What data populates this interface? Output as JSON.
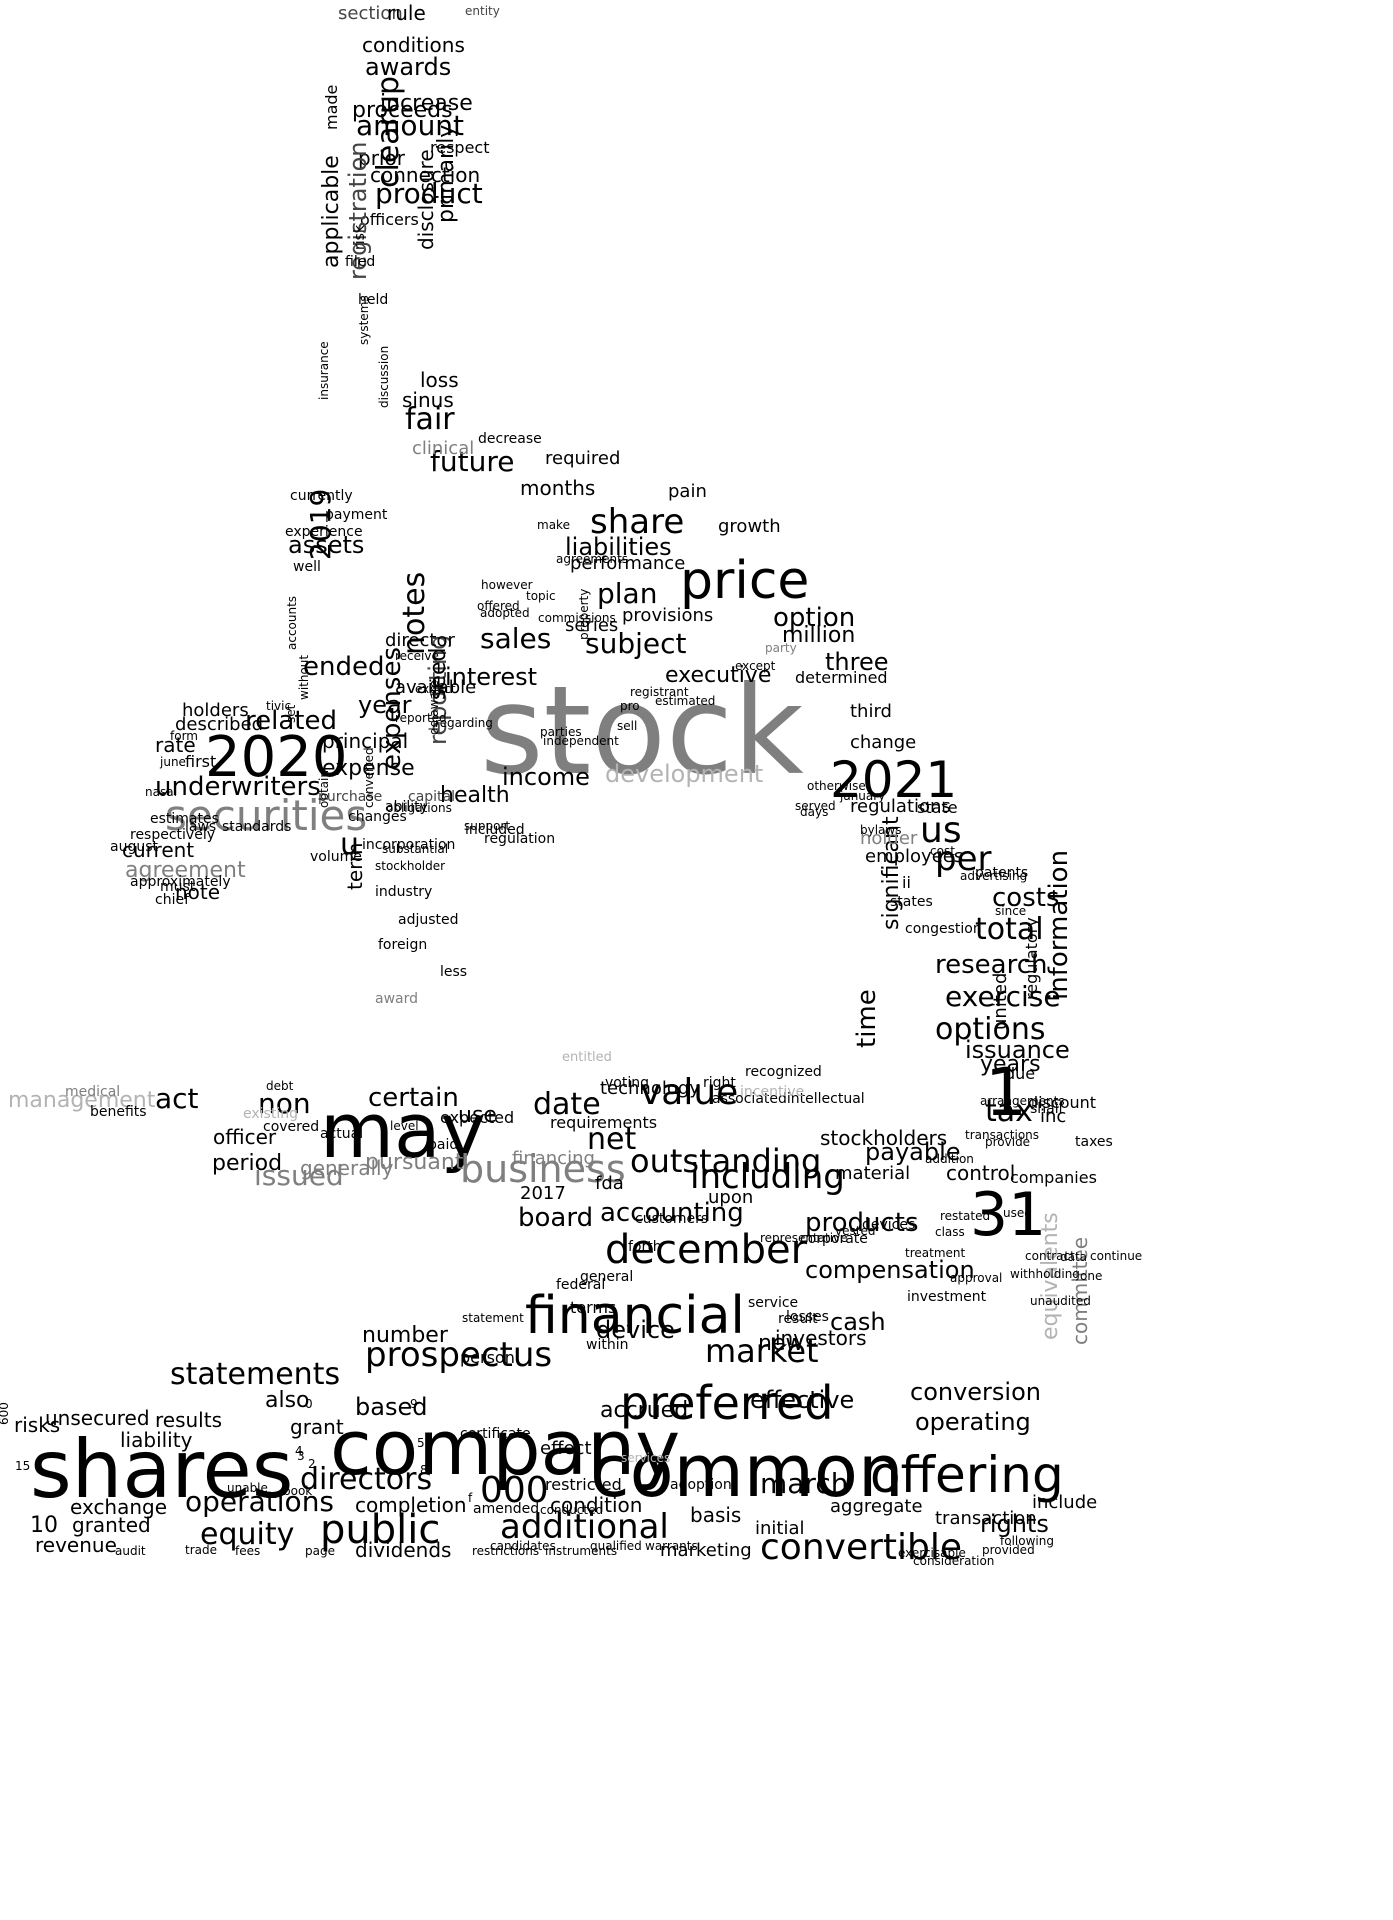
{
  "colors": {
    "background": "#ffffff",
    "dark": "#000000",
    "medium": "#444444",
    "gray": "#7f7f7f",
    "light": "#b3b3b3",
    "pale": "#d0d0d0"
  },
  "words": [
    {
      "t": "stock",
      "c": "gray"
    },
    {
      "t": "shares",
      "c": "dark"
    },
    {
      "t": "company",
      "c": "dark"
    },
    {
      "t": "common",
      "c": "dark"
    },
    {
      "t": "may",
      "c": "dark"
    },
    {
      "t": "offering",
      "c": "dark"
    },
    {
      "t": "financial",
      "c": "dark"
    },
    {
      "t": "2020",
      "c": "dark"
    },
    {
      "t": "2021",
      "c": "dark"
    },
    {
      "t": "price",
      "c": "dark"
    },
    {
      "t": "securities",
      "c": "gray"
    },
    {
      "t": "preferred",
      "c": "dark"
    },
    {
      "t": "december",
      "c": "dark"
    },
    {
      "t": "business",
      "c": "gray"
    },
    {
      "t": "convertible",
      "c": "dark"
    },
    {
      "t": "public",
      "c": "dark"
    },
    {
      "t": "31",
      "c": "dark"
    },
    {
      "t": "1",
      "c": "dark"
    },
    {
      "t": "share",
      "c": "dark"
    },
    {
      "t": "value",
      "c": "dark"
    },
    {
      "t": "outstanding",
      "c": "dark"
    },
    {
      "t": "market",
      "c": "dark"
    },
    {
      "t": "prospectus",
      "c": "dark"
    },
    {
      "t": "additional",
      "c": "dark"
    },
    {
      "t": "including",
      "c": "dark"
    },
    {
      "t": "000",
      "c": "dark"
    },
    {
      "t": "statements",
      "c": "dark"
    },
    {
      "t": "directors",
      "c": "dark"
    },
    {
      "t": "equity",
      "c": "dark"
    },
    {
      "t": "operations",
      "c": "dark"
    },
    {
      "t": "sales",
      "c": "dark"
    },
    {
      "t": "subject",
      "c": "dark"
    },
    {
      "t": "plan",
      "c": "dark"
    },
    {
      "t": "liabilities",
      "c": "dark"
    },
    {
      "t": "fair",
      "c": "dark"
    },
    {
      "t": "future",
      "c": "dark"
    },
    {
      "t": "amount",
      "c": "dark"
    },
    {
      "t": "product",
      "c": "dark"
    },
    {
      "t": "awards",
      "c": "dark"
    },
    {
      "t": "proceeds",
      "c": "dark"
    },
    {
      "t": "increase",
      "c": "dark"
    },
    {
      "t": "conditions",
      "c": "dark"
    },
    {
      "t": "prior",
      "c": "dark"
    },
    {
      "t": "connection",
      "c": "dark"
    },
    {
      "t": "respect",
      "c": "dark"
    },
    {
      "t": "officers",
      "c": "dark"
    },
    {
      "t": "section",
      "c": "medium"
    },
    {
      "t": "rule",
      "c": "dark"
    },
    {
      "t": "entity",
      "c": "medium"
    },
    {
      "t": "assets",
      "c": "dark"
    },
    {
      "t": "ended",
      "c": "dark"
    },
    {
      "t": "related",
      "c": "dark"
    },
    {
      "t": "year",
      "c": "dark"
    },
    {
      "t": "interest",
      "c": "dark"
    },
    {
      "t": "executive",
      "c": "dark"
    },
    {
      "t": "option",
      "c": "dark"
    },
    {
      "t": "million",
      "c": "dark"
    },
    {
      "t": "three",
      "c": "dark"
    },
    {
      "t": "income",
      "c": "dark"
    },
    {
      "t": "development",
      "c": "light"
    },
    {
      "t": "health",
      "c": "dark"
    },
    {
      "t": "expense",
      "c": "dark"
    },
    {
      "t": "principal",
      "c": "dark"
    },
    {
      "t": "rate",
      "c": "dark"
    },
    {
      "t": "holders",
      "c": "dark"
    },
    {
      "t": "described",
      "c": "dark"
    },
    {
      "t": "underwriters",
      "c": "dark"
    },
    {
      "t": "first",
      "c": "dark"
    },
    {
      "t": "agreement",
      "c": "gray"
    },
    {
      "t": "current",
      "c": "dark"
    },
    {
      "t": "note",
      "c": "dark"
    },
    {
      "t": "us",
      "c": "dark"
    },
    {
      "t": "per",
      "c": "dark"
    },
    {
      "t": "total",
      "c": "dark"
    },
    {
      "t": "costs",
      "c": "dark"
    },
    {
      "t": "research",
      "c": "dark"
    },
    {
      "t": "exercise",
      "c": "dark"
    },
    {
      "t": "options",
      "c": "dark"
    },
    {
      "t": "issuance",
      "c": "dark"
    },
    {
      "t": "years",
      "c": "dark"
    },
    {
      "t": "tax",
      "c": "dark"
    },
    {
      "t": "information",
      "c": "dark"
    },
    {
      "t": "time",
      "c": "dark"
    },
    {
      "t": "significant",
      "c": "dark"
    },
    {
      "t": "certain",
      "c": "dark"
    },
    {
      "t": "act",
      "c": "dark"
    },
    {
      "t": "non",
      "c": "dark"
    },
    {
      "t": "date",
      "c": "dark"
    },
    {
      "t": "net",
      "c": "dark"
    },
    {
      "t": "use",
      "c": "dark"
    },
    {
      "t": "issued",
      "c": "gray"
    },
    {
      "t": "management",
      "c": "light"
    },
    {
      "t": "period",
      "c": "dark"
    },
    {
      "t": "officer",
      "c": "dark"
    },
    {
      "t": "generally",
      "c": "gray"
    },
    {
      "t": "pursuant",
      "c": "gray"
    },
    {
      "t": "accounting",
      "c": "dark"
    },
    {
      "t": "board",
      "c": "dark"
    },
    {
      "t": "products",
      "c": "dark"
    },
    {
      "t": "compensation",
      "c": "dark"
    },
    {
      "t": "payable",
      "c": "dark"
    },
    {
      "t": "stockholders",
      "c": "dark"
    },
    {
      "t": "control",
      "c": "dark"
    },
    {
      "t": "cash",
      "c": "dark"
    },
    {
      "t": "device",
      "c": "dark"
    },
    {
      "t": "number",
      "c": "dark"
    },
    {
      "t": "new",
      "c": "dark"
    },
    {
      "t": "investors",
      "c": "dark"
    },
    {
      "t": "conversion",
      "c": "dark"
    },
    {
      "t": "operating",
      "c": "dark"
    },
    {
      "t": "based",
      "c": "dark"
    },
    {
      "t": "also",
      "c": "dark"
    },
    {
      "t": "grant",
      "c": "dark"
    },
    {
      "t": "results",
      "c": "dark"
    },
    {
      "t": "liability",
      "c": "dark"
    },
    {
      "t": "unsecured",
      "c": "dark"
    },
    {
      "t": "risks",
      "c": "dark"
    },
    {
      "t": "exchange",
      "c": "dark"
    },
    {
      "t": "10",
      "c": "dark"
    },
    {
      "t": "granted",
      "c": "dark"
    },
    {
      "t": "revenue",
      "c": "dark"
    },
    {
      "t": "accrued",
      "c": "dark"
    },
    {
      "t": "effective",
      "c": "dark"
    },
    {
      "t": "march",
      "c": "dark"
    },
    {
      "t": "dividends",
      "c": "dark"
    },
    {
      "t": "completion",
      "c": "dark"
    },
    {
      "t": "condition",
      "c": "dark"
    },
    {
      "t": "marketing",
      "c": "dark"
    },
    {
      "t": "rights",
      "c": "dark"
    },
    {
      "t": "include",
      "c": "dark"
    },
    {
      "t": "transaction",
      "c": "dark"
    },
    {
      "t": "initial",
      "c": "dark"
    },
    {
      "t": "basis",
      "c": "dark"
    },
    {
      "t": "aggregate",
      "c": "dark"
    },
    {
      "t": "clearup",
      "c": "dark"
    },
    {
      "t": "registration",
      "c": "medium"
    },
    {
      "t": "applicable",
      "c": "dark"
    },
    {
      "t": "notes",
      "c": "dark"
    },
    {
      "t": "2019",
      "c": "dark"
    },
    {
      "t": "expenses",
      "c": "dark"
    },
    {
      "t": "reporting",
      "c": "medium"
    },
    {
      "t": "term",
      "c": "dark"
    },
    {
      "t": "seed",
      "c": "dark"
    },
    {
      "t": "u",
      "c": "dark"
    },
    {
      "t": "sinus",
      "c": "dark"
    },
    {
      "t": "loss",
      "c": "dark"
    },
    {
      "t": "clinical",
      "c": "gray"
    },
    {
      "t": "months",
      "c": "dark"
    },
    {
      "t": "required",
      "c": "dark"
    },
    {
      "t": "pain",
      "c": "dark"
    },
    {
      "t": "growth",
      "c": "dark"
    },
    {
      "t": "performance",
      "c": "dark"
    },
    {
      "t": "provisions",
      "c": "dark"
    },
    {
      "t": "series",
      "c": "dark"
    },
    {
      "t": "director",
      "c": "dark"
    },
    {
      "t": "available",
      "c": "dark"
    },
    {
      "t": "change",
      "c": "dark"
    },
    {
      "t": "third",
      "c": "dark"
    },
    {
      "t": "determined",
      "c": "dark"
    },
    {
      "t": "regulations",
      "c": "dark"
    },
    {
      "t": "state",
      "c": "dark"
    },
    {
      "t": "employees",
      "c": "dark"
    },
    {
      "t": "holder",
      "c": "gray"
    },
    {
      "t": "ii",
      "c": "dark"
    },
    {
      "t": "states",
      "c": "dark"
    },
    {
      "t": "congestion",
      "c": "dark"
    },
    {
      "t": "technology",
      "c": "dark"
    },
    {
      "t": "requirements",
      "c": "dark"
    },
    {
      "t": "expected",
      "c": "dark"
    },
    {
      "t": "financing",
      "c": "gray"
    },
    {
      "t": "2017",
      "c": "dark"
    },
    {
      "t": "fda",
      "c": "dark"
    },
    {
      "t": "upon",
      "c": "dark"
    },
    {
      "t": "material",
      "c": "dark"
    },
    {
      "t": "united",
      "c": "dark"
    },
    {
      "t": "regulatory",
      "c": "dark"
    },
    {
      "t": "companies",
      "c": "dark"
    },
    {
      "t": "inc",
      "c": "dark"
    },
    {
      "t": "due",
      "c": "dark"
    },
    {
      "t": "discount",
      "c": "dark"
    },
    {
      "t": "shall",
      "c": "dark"
    },
    {
      "t": "taxes",
      "c": "dark"
    },
    {
      "t": "general",
      "c": "dark"
    },
    {
      "t": "terms",
      "c": "dark"
    },
    {
      "t": "federal",
      "c": "dark"
    },
    {
      "t": "within",
      "c": "dark"
    },
    {
      "t": "statement",
      "c": "dark"
    },
    {
      "t": "person",
      "c": "dark"
    },
    {
      "t": "certificate",
      "c": "dark"
    },
    {
      "t": "amended",
      "c": "dark"
    },
    {
      "t": "effect",
      "c": "dark"
    },
    {
      "t": "restricted",
      "c": "dark"
    },
    {
      "t": "adoption",
      "c": "dark"
    },
    {
      "t": "services",
      "c": "light"
    },
    {
      "t": "equivalents",
      "c": "light"
    },
    {
      "t": "committee",
      "c": "gray"
    },
    {
      "t": "investment",
      "c": "dark"
    },
    {
      "t": "result",
      "c": "dark"
    },
    {
      "t": "service",
      "c": "dark"
    },
    {
      "t": "losses",
      "c": "dark"
    },
    {
      "t": "corporate",
      "c": "dark"
    },
    {
      "t": "devices",
      "c": "dark"
    },
    {
      "t": "forth",
      "c": "dark"
    },
    {
      "t": "customers",
      "c": "dark"
    },
    {
      "t": "representative",
      "c": "dark"
    },
    {
      "t": "voting",
      "c": "dark"
    },
    {
      "t": "right",
      "c": "dark"
    },
    {
      "t": "recognized",
      "c": "dark"
    },
    {
      "t": "associatedintellectual",
      "c": "dark"
    },
    {
      "t": "incentive",
      "c": "light"
    },
    {
      "t": "entitled",
      "c": "light"
    },
    {
      "t": "medical",
      "c": "gray"
    },
    {
      "t": "benefits",
      "c": "dark"
    },
    {
      "t": "covered",
      "c": "dark"
    },
    {
      "t": "existing",
      "c": "light"
    },
    {
      "t": "debt",
      "c": "dark"
    },
    {
      "t": "actual",
      "c": "dark"
    },
    {
      "t": "level",
      "c": "dark"
    },
    {
      "t": "paid",
      "c": "dark"
    },
    {
      "t": "award",
      "c": "gray"
    },
    {
      "t": "less",
      "c": "dark"
    },
    {
      "t": "foreign",
      "c": "dark"
    },
    {
      "t": "adjusted",
      "c": "dark"
    },
    {
      "t": "industry",
      "c": "dark"
    },
    {
      "t": "incorporation",
      "c": "dark"
    },
    {
      "t": "volume",
      "c": "dark"
    },
    {
      "t": "changes",
      "c": "dark"
    },
    {
      "t": "ability",
      "c": "dark"
    },
    {
      "t": "included",
      "c": "dark"
    },
    {
      "t": "regulation",
      "c": "dark"
    },
    {
      "t": "capital",
      "c": "medium"
    },
    {
      "t": "purchase",
      "c": "medium"
    },
    {
      "t": "laws",
      "c": "dark"
    },
    {
      "t": "standards",
      "c": "dark"
    },
    {
      "t": "august",
      "c": "dark"
    },
    {
      "t": "respectively",
      "c": "dark"
    },
    {
      "t": "estimates",
      "c": "dark"
    },
    {
      "t": "must",
      "c": "dark"
    },
    {
      "t": "chief",
      "c": "dark"
    },
    {
      "t": "approximately",
      "c": "dark"
    },
    {
      "t": "currently",
      "c": "dark"
    },
    {
      "t": "payment",
      "c": "dark"
    },
    {
      "t": "experience",
      "c": "dark"
    },
    {
      "t": "well",
      "c": "dark"
    },
    {
      "t": "primarily",
      "c": "dark"
    },
    {
      "t": "disclosure",
      "c": "dark"
    },
    {
      "t": "filed",
      "c": "dark"
    },
    {
      "t": "risk",
      "c": "dark"
    },
    {
      "t": "held",
      "c": "dark"
    },
    {
      "t": "made",
      "c": "dark"
    },
    {
      "t": "systems",
      "c": "dark"
    },
    {
      "t": "discussion",
      "c": "dark"
    },
    {
      "t": "insurance",
      "c": "dark"
    },
    {
      "t": "decrease",
      "c": "dark"
    },
    {
      "t": "accounts",
      "c": "dark"
    },
    {
      "t": "without",
      "c": "dark"
    },
    {
      "t": "set",
      "c": "dark"
    },
    {
      "t": "tivic",
      "c": "dark"
    },
    {
      "t": "form",
      "c": "dark"
    },
    {
      "t": "june",
      "c": "dark"
    },
    {
      "t": "nasal",
      "c": "dark"
    },
    {
      "t": "patents",
      "c": "dark"
    },
    {
      "t": "advertising",
      "c": "dark"
    },
    {
      "t": "since",
      "c": "dark"
    },
    {
      "t": "cost",
      "c": "dark"
    },
    {
      "t": "bylaws",
      "c": "dark"
    },
    {
      "t": "days",
      "c": "dark"
    },
    {
      "t": "served",
      "c": "dark"
    },
    {
      "t": "otherwise",
      "c": "dark"
    },
    {
      "t": "january",
      "c": "dark"
    },
    {
      "t": "except",
      "c": "dark"
    },
    {
      "t": "party",
      "c": "gray"
    },
    {
      "t": "estimated",
      "c": "dark"
    },
    {
      "t": "pro",
      "c": "dark"
    },
    {
      "t": "sell",
      "c": "dark"
    },
    {
      "t": "parties",
      "c": "dark"
    },
    {
      "t": "independent",
      "c": "dark"
    },
    {
      "t": "registrant",
      "c": "dark"
    },
    {
      "t": "property",
      "c": "dark"
    },
    {
      "t": "commissions",
      "c": "dark"
    },
    {
      "t": "offered",
      "c": "dark"
    },
    {
      "t": "topic",
      "c": "dark"
    },
    {
      "t": "however",
      "c": "dark"
    },
    {
      "t": "adopted",
      "c": "dark"
    },
    {
      "t": "make",
      "c": "dark"
    },
    {
      "t": "agreements",
      "c": "dark"
    },
    {
      "t": "receive",
      "c": "dark"
    },
    {
      "t": "reported",
      "c": "dark"
    },
    {
      "t": "expect",
      "c": "dark"
    },
    {
      "t": "regarding",
      "c": "dark"
    },
    {
      "t": "delaware",
      "c": "dark"
    },
    {
      "t": "converted",
      "c": "dark"
    },
    {
      "t": "obtain",
      "c": "dark"
    },
    {
      "t": "obligations",
      "c": "dark"
    },
    {
      "t": "stockholder",
      "c": "dark"
    },
    {
      "t": "support",
      "c": "dark"
    },
    {
      "t": "substantial",
      "c": "dark"
    },
    {
      "t": "provide",
      "c": "dark"
    },
    {
      "t": "arrangements",
      "c": "dark"
    },
    {
      "t": "transactions",
      "c": "dark"
    },
    {
      "t": "addition",
      "c": "dark"
    },
    {
      "t": "restated",
      "c": "dark"
    },
    {
      "t": "class",
      "c": "dark"
    },
    {
      "t": "vested",
      "c": "dark"
    },
    {
      "t": "used",
      "c": "dark"
    },
    {
      "t": "treatment",
      "c": "dark"
    },
    {
      "t": "withholding",
      "c": "dark"
    },
    {
      "t": "one",
      "c": "dark"
    },
    {
      "t": "data",
      "c": "dark"
    },
    {
      "t": "contract",
      "c": "dark"
    },
    {
      "t": "approval",
      "c": "dark"
    },
    {
      "t": "continue",
      "c": "dark"
    },
    {
      "t": "unaudited",
      "c": "dark"
    },
    {
      "t": "following",
      "c": "dark"
    },
    {
      "t": "provided",
      "c": "dark"
    },
    {
      "t": "consideration",
      "c": "dark"
    },
    {
      "t": "exercisable",
      "c": "dark"
    },
    {
      "t": "warrants",
      "c": "dark"
    },
    {
      "t": "restrictions",
      "c": "dark"
    },
    {
      "t": "qualified",
      "c": "dark"
    },
    {
      "t": "instruments",
      "c": "dark"
    },
    {
      "t": "conducted",
      "c": "dark"
    },
    {
      "t": "candidates",
      "c": "dark"
    },
    {
      "t": "audit",
      "c": "dark"
    },
    {
      "t": "trade",
      "c": "dark"
    },
    {
      "t": "fees",
      "c": "dark"
    },
    {
      "t": "page",
      "c": "dark"
    },
    {
      "t": "book",
      "c": "dark"
    },
    {
      "t": "unable",
      "c": "dark"
    },
    {
      "t": "3",
      "c": "dark"
    },
    {
      "t": "2",
      "c": "dark"
    },
    {
      "t": "4",
      "c": "dark"
    },
    {
      "t": "0",
      "c": "dark"
    },
    {
      "t": "9",
      "c": "dark"
    },
    {
      "t": "5",
      "c": "dark"
    },
    {
      "t": "8",
      "c": "dark"
    },
    {
      "t": "f",
      "c": "dark"
    },
    {
      "t": "600",
      "c": "dark"
    },
    {
      "t": "15",
      "c": "dark"
    }
  ]
}
